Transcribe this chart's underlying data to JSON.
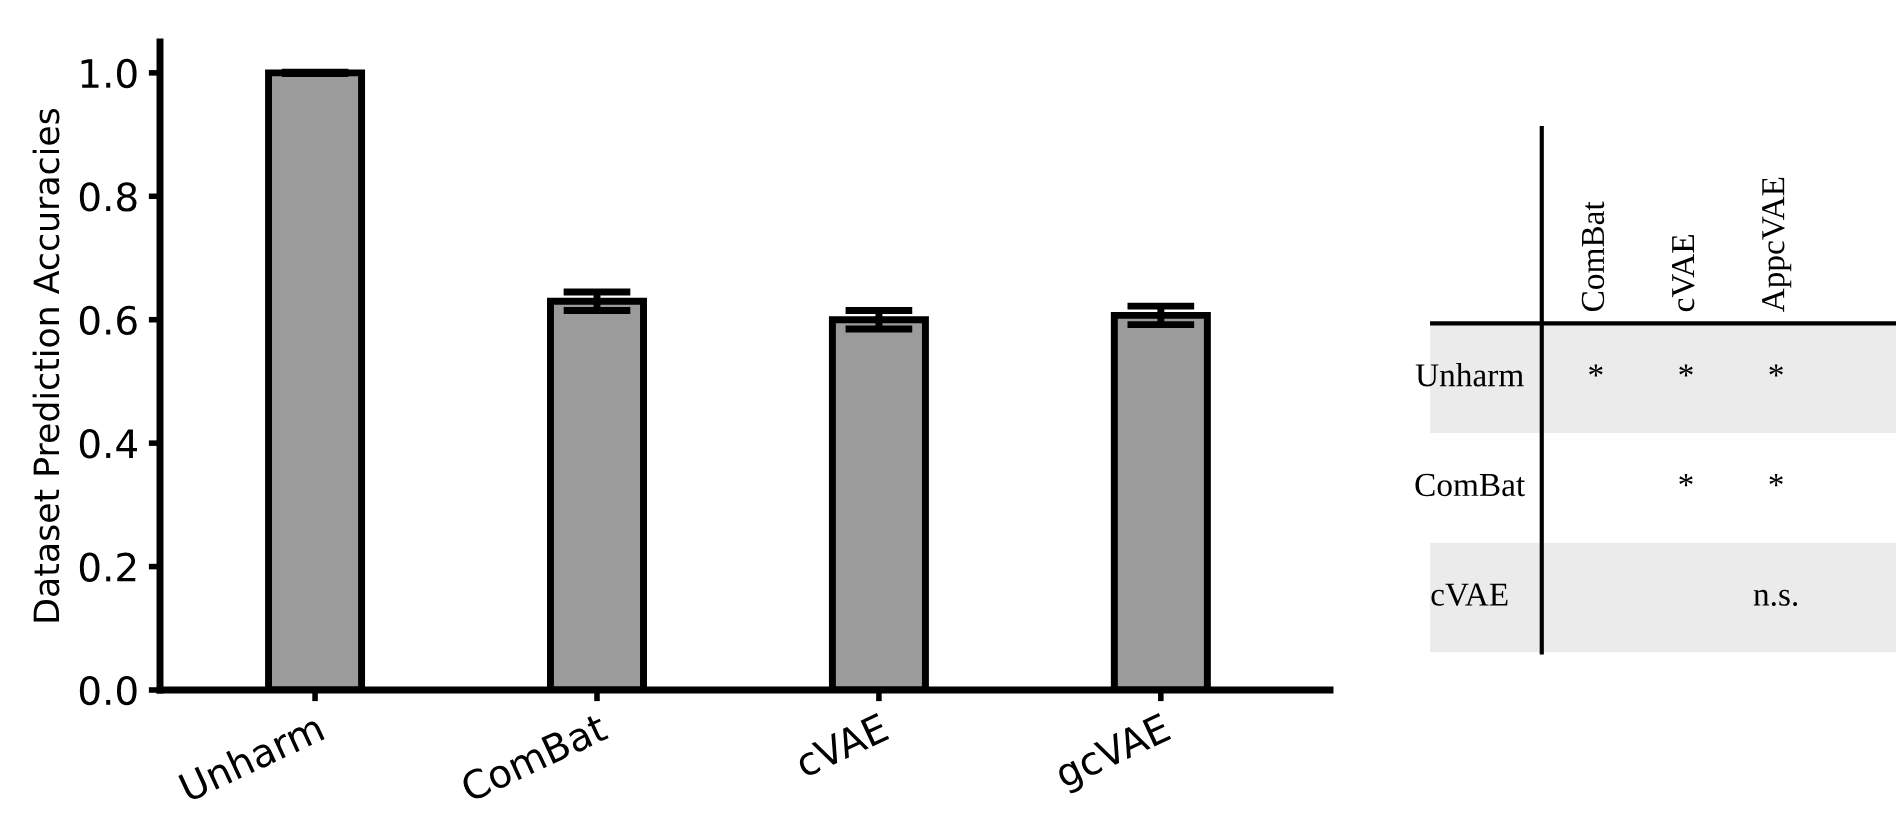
{
  "chart_data": [
    {
      "type": "bar",
      "ylabel": "Dataset Prediction Accuracies",
      "categories": [
        "Unharm",
        "ComBat",
        "cVAE",
        "gcVAE"
      ],
      "values": [
        1.0,
        0.63,
        0.6,
        0.607
      ],
      "errors": [
        0.001,
        0.015,
        0.015,
        0.015
      ],
      "color": "#9b9b9b",
      "ylim": [
        0,
        1.05
      ],
      "yticks": [
        {
          "value": 0,
          "label": "0.0"
        },
        0.2,
        0.4,
        0.6,
        0.8,
        {
          "value": 1,
          "label": "1.0"
        }
      ],
      "grid": false
    },
    {
      "type": "other",
      "categories": [
        "ComBat",
        "cVAE",
        "AppcVAE"
      ],
      "y_categories": [
        "Unharm",
        "ComBat",
        "cVAE"
      ],
      "cell_labels": [
        [
          "*",
          "*",
          "*"
        ],
        [
          null,
          "*",
          "*"
        ],
        [
          null,
          null,
          "n.s."
        ]
      ]
    }
  ]
}
